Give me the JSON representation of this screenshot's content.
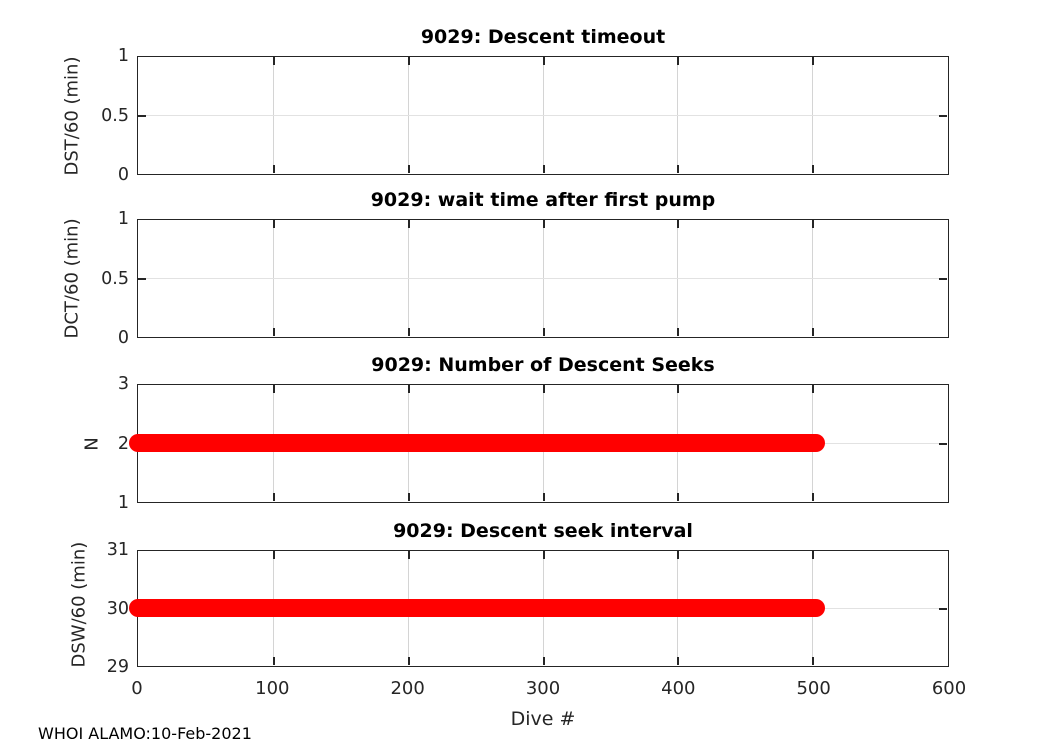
{
  "figure": {
    "footer": "WHOI ALAMO:10-Feb-2021",
    "background_color": "#ffffff",
    "axis_color": "#252525",
    "grid_color": "#d4d4d4",
    "accent_color": "#ff0000"
  },
  "chart_data": {
    "type": "line",
    "xlabel": "Dive #",
    "xlim": [
      0,
      600
    ],
    "xticks": [
      0,
      100,
      200,
      300,
      400,
      500,
      600
    ],
    "xtick_labels": [
      "0",
      "100",
      "200",
      "300",
      "400",
      "500",
      "600"
    ],
    "grid": true,
    "legend_position": "none",
    "subplots": [
      {
        "title": "9029: Descent timeout",
        "ylabel": "DST/60 (min)",
        "ylim": [
          0,
          1
        ],
        "yticks": [
          0,
          0.5,
          1
        ],
        "ytick_labels": [
          "0",
          "0.5",
          "1"
        ],
        "series": []
      },
      {
        "title": "9029: wait time after first pump",
        "ylabel": "DCT/60 (min)",
        "ylim": [
          0,
          1
        ],
        "yticks": [
          0,
          0.5,
          1
        ],
        "ytick_labels": [
          "0",
          "0.5",
          "1"
        ],
        "series": []
      },
      {
        "title": "9029: Number of Descent Seeks",
        "ylabel": "N",
        "ylim": [
          1,
          3
        ],
        "yticks": [
          1,
          2,
          3
        ],
        "ytick_labels": [
          "1",
          "2",
          "3"
        ],
        "series": [
          {
            "name": "descent-seeks",
            "value": 2,
            "x_start": 0,
            "x_end": 503,
            "color": "#ff0000"
          }
        ]
      },
      {
        "title": "9029: Descent seek interval",
        "ylabel": "DSW/60 (min)",
        "ylim": [
          29,
          31
        ],
        "yticks": [
          29,
          30,
          31
        ],
        "ytick_labels": [
          "29",
          "30",
          "31"
        ],
        "series": [
          {
            "name": "descent-seek-interval",
            "value": 30,
            "x_start": 0,
            "x_end": 503,
            "color": "#ff0000"
          }
        ]
      }
    ]
  }
}
